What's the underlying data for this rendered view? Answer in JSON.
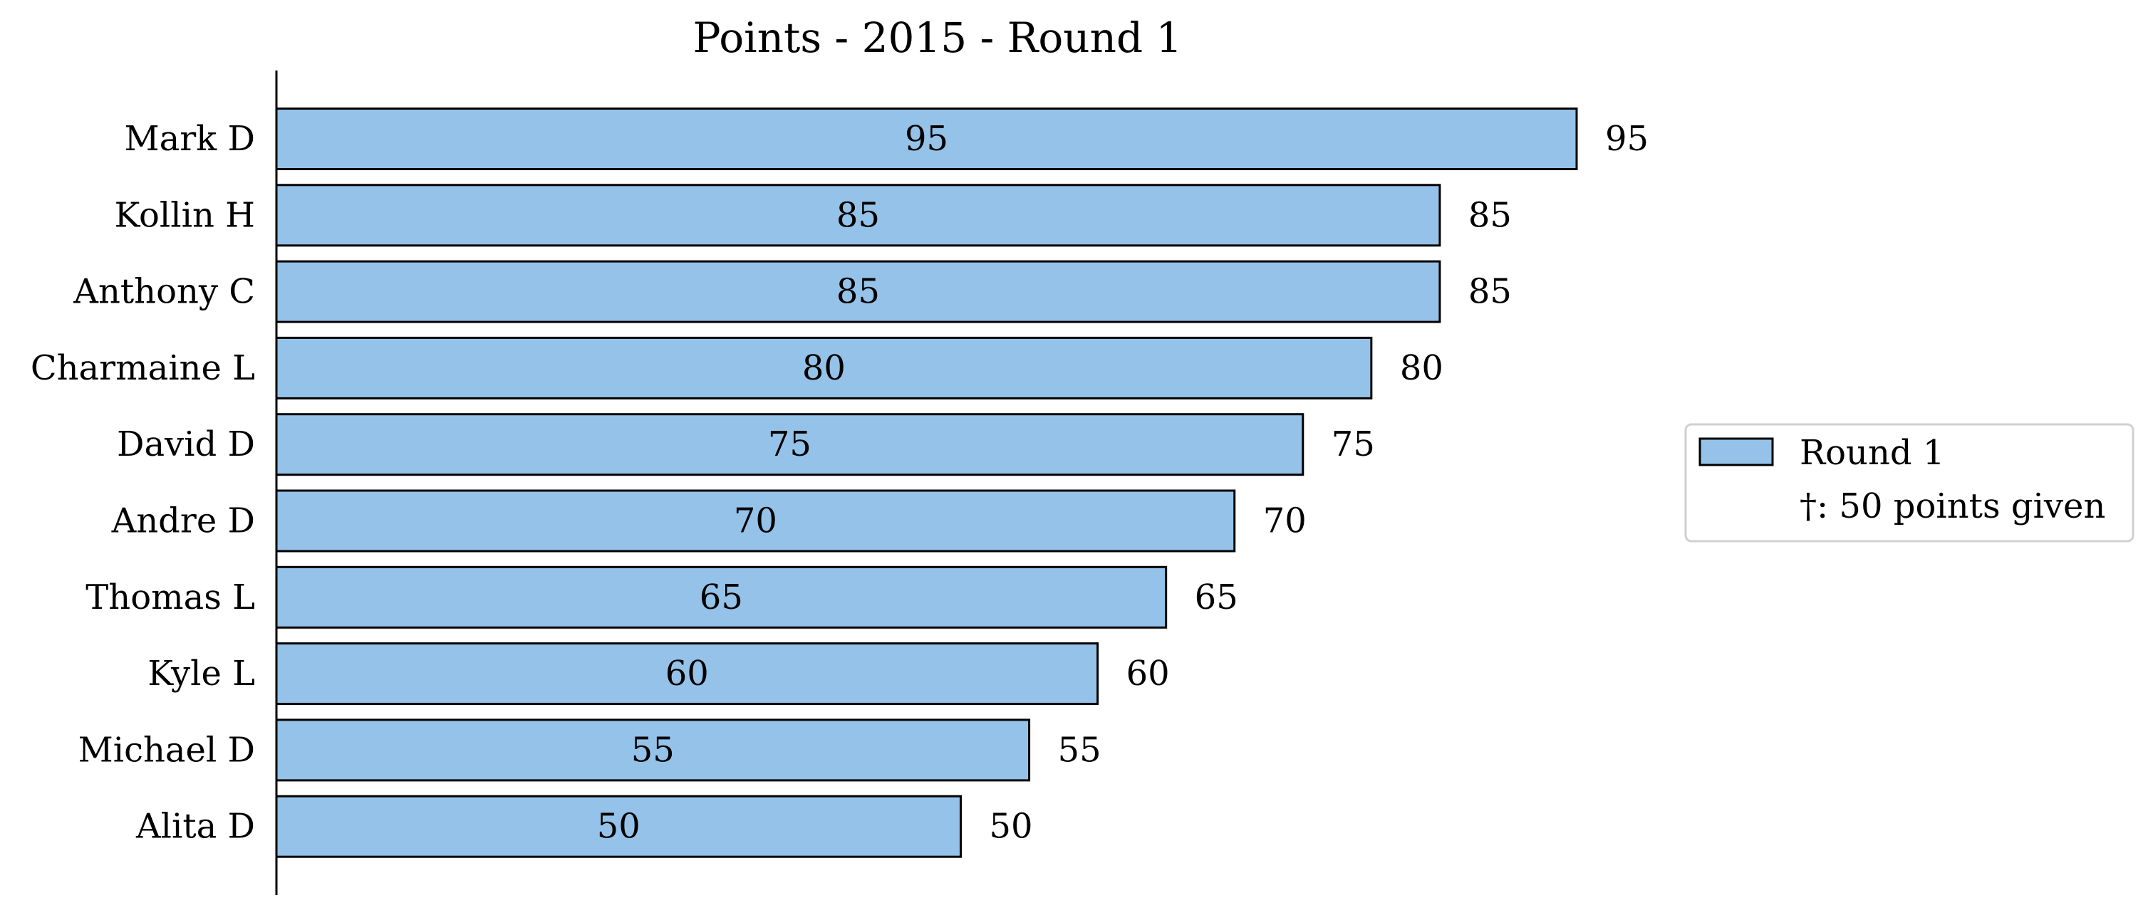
{
  "chart_data": {
    "type": "bar",
    "orientation": "horizontal",
    "title": "Points - 2015 - Round 1",
    "xlabel": "",
    "ylabel": "",
    "xlim": [
      0,
      100
    ],
    "categories": [
      "Mark D",
      "Kollin H",
      "Anthony C",
      "Charmaine L",
      "David D",
      "Andre D",
      "Thomas L",
      "Kyle L",
      "Michael D",
      "Alita D"
    ],
    "series": [
      {
        "name": "Round 1",
        "values": [
          95,
          85,
          85,
          80,
          75,
          70,
          65,
          60,
          55,
          50
        ],
        "color": "#95c2e8"
      }
    ],
    "inside_labels": [
      "95",
      "85",
      "85",
      "80",
      "75",
      "70",
      "65",
      "60",
      "55",
      "50"
    ],
    "outside_labels": [
      "95",
      "85",
      "85",
      "80",
      "75",
      "70",
      "65",
      "60",
      "55",
      "50"
    ],
    "legend": {
      "position": "center-right",
      "entries": [
        {
          "label": "Round 1",
          "has_swatch": true
        },
        {
          "label": "†: 50 points given",
          "has_swatch": false
        }
      ]
    },
    "grid": false
  }
}
